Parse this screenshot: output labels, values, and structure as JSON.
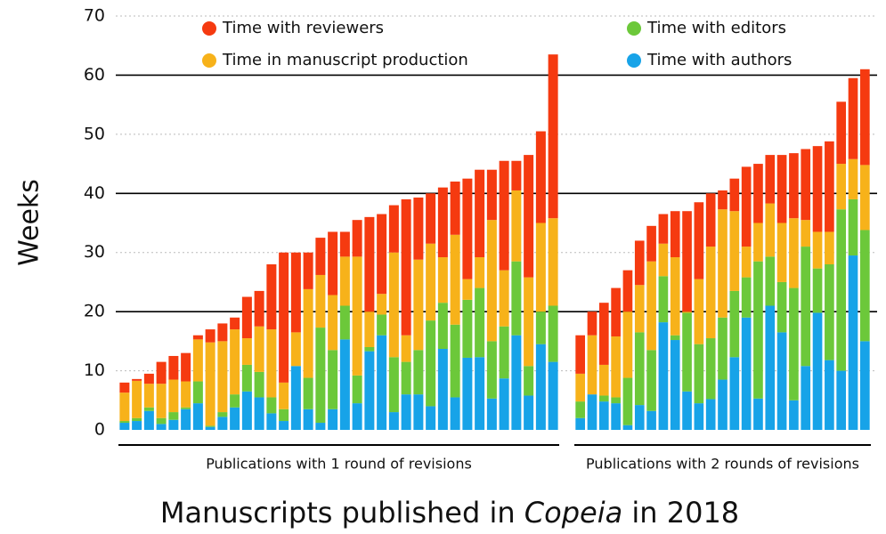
{
  "chart_data": {
    "type": "stacked_bar",
    "title": [
      "Manuscripts published in ",
      "Copeia",
      " in 2018"
    ],
    "y_label": "Weeks",
    "ylim": [
      0,
      70
    ],
    "yticks": [
      0,
      10,
      20,
      30,
      40,
      50,
      60,
      70
    ],
    "grid": true,
    "series": [
      {
        "name": "Time with authors",
        "color": "#17a3e8"
      },
      {
        "name": "Time with editors",
        "color": "#6cc83a"
      },
      {
        "name": "Time in manuscript production",
        "color": "#f7b21a"
      },
      {
        "name": "Time with reviewers",
        "color": "#f53a10"
      }
    ],
    "groups": [
      {
        "label": "Publications with 1 round of revisions",
        "categories": [
          null,
          null,
          null,
          null,
          null,
          null,
          null,
          null,
          null,
          null,
          null,
          null,
          null,
          null,
          null,
          null,
          null,
          null,
          null,
          null,
          null,
          null,
          null,
          null,
          null,
          null,
          null,
          null,
          null,
          null,
          null,
          null,
          null,
          null,
          null,
          null
        ],
        "values": [
          [
            1.2,
            1.5,
            3.2,
            1,
            1.7,
            3.5,
            4.5,
            0.5,
            2.2,
            3.8,
            6.5,
            5.5,
            2.8,
            1.5,
            10.8,
            3.5,
            1.2,
            3.5,
            15.3,
            4.5,
            13.3,
            16,
            3,
            6,
            6,
            4,
            13.7,
            5.5,
            12.2,
            12.3,
            5.3,
            8.7,
            16,
            5.8,
            14.5,
            11.5
          ],
          [
            0.3,
            0.5,
            0.6,
            1,
            1.3,
            0.3,
            3.7,
            0.2,
            0.8,
            2.2,
            4.5,
            4.3,
            2.7,
            2,
            0,
            5.3,
            16.1,
            10,
            5.7,
            4.7,
            0.7,
            3.5,
            9.3,
            5.5,
            7.5,
            14.5,
            7.8,
            12.3,
            9.8,
            11.7,
            9.7,
            8.8,
            12.5,
            5,
            5.5,
            9.5
          ],
          [
            4.8,
            6.3,
            4,
            5.8,
            5.5,
            4.4,
            7.1,
            14.1,
            12,
            11,
            4.5,
            7.7,
            11.5,
            4.5,
            5.7,
            15,
            8.9,
            9.3,
            8.3,
            20.1,
            6,
            3.5,
            17.7,
            4.5,
            15.3,
            13,
            7.7,
            15.2,
            3.5,
            5.2,
            20.5,
            9.5,
            12,
            15,
            15,
            14.8
          ],
          [
            1.7,
            0.3,
            1.7,
            3.7,
            4,
            4.8,
            0.7,
            2.2,
            3,
            2,
            7,
            6,
            11,
            22,
            13.5,
            6.2,
            6.3,
            10.7,
            4.2,
            6.2,
            16,
            13.5,
            8,
            23,
            10.5,
            8.5,
            11.8,
            9,
            17,
            14.8,
            8.5,
            18.5,
            5,
            20.7,
            15.5,
            27.7
          ]
        ]
      },
      {
        "label": "Publications with 2 rounds of revisions",
        "categories": [
          null,
          null,
          null,
          null,
          null,
          null,
          null,
          null,
          null,
          null,
          null,
          null,
          null,
          null,
          null,
          null,
          null,
          null,
          null,
          null,
          null,
          null,
          null,
          null,
          null
        ],
        "values": [
          [
            2,
            6,
            4.8,
            4.5,
            0.8,
            4.2,
            3.2,
            18.2,
            15.2,
            6.5,
            4.5,
            5.2,
            8.5,
            12.3,
            19,
            5.3,
            21,
            16.5,
            5,
            10.8,
            19.8,
            11.8,
            10,
            29.5,
            15
          ],
          [
            2.8,
            0,
            1,
            1,
            8,
            12.3,
            10.3,
            7.8,
            0.8,
            13.3,
            10,
            10.3,
            10.5,
            11.2,
            6.8,
            23.2,
            8.3,
            8.5,
            19,
            20.2,
            7.5,
            16.2,
            27.3,
            9.5,
            18.8
          ],
          [
            4.7,
            10,
            5.2,
            10.3,
            11.2,
            8,
            15,
            5.5,
            13.2,
            0.2,
            11,
            15.5,
            18.3,
            13.5,
            5.2,
            6.5,
            9,
            10,
            11.8,
            4.5,
            6.2,
            5.5,
            7.7,
            6.8,
            11
          ],
          [
            6.5,
            4,
            10.5,
            8.2,
            7,
            7.5,
            6,
            5,
            7.8,
            17,
            13,
            9,
            3.2,
            5.5,
            13.5,
            10,
            8.2,
            11.5,
            11,
            12,
            14.5,
            15.3,
            10.5,
            13.7,
            16.2
          ]
        ]
      }
    ]
  }
}
